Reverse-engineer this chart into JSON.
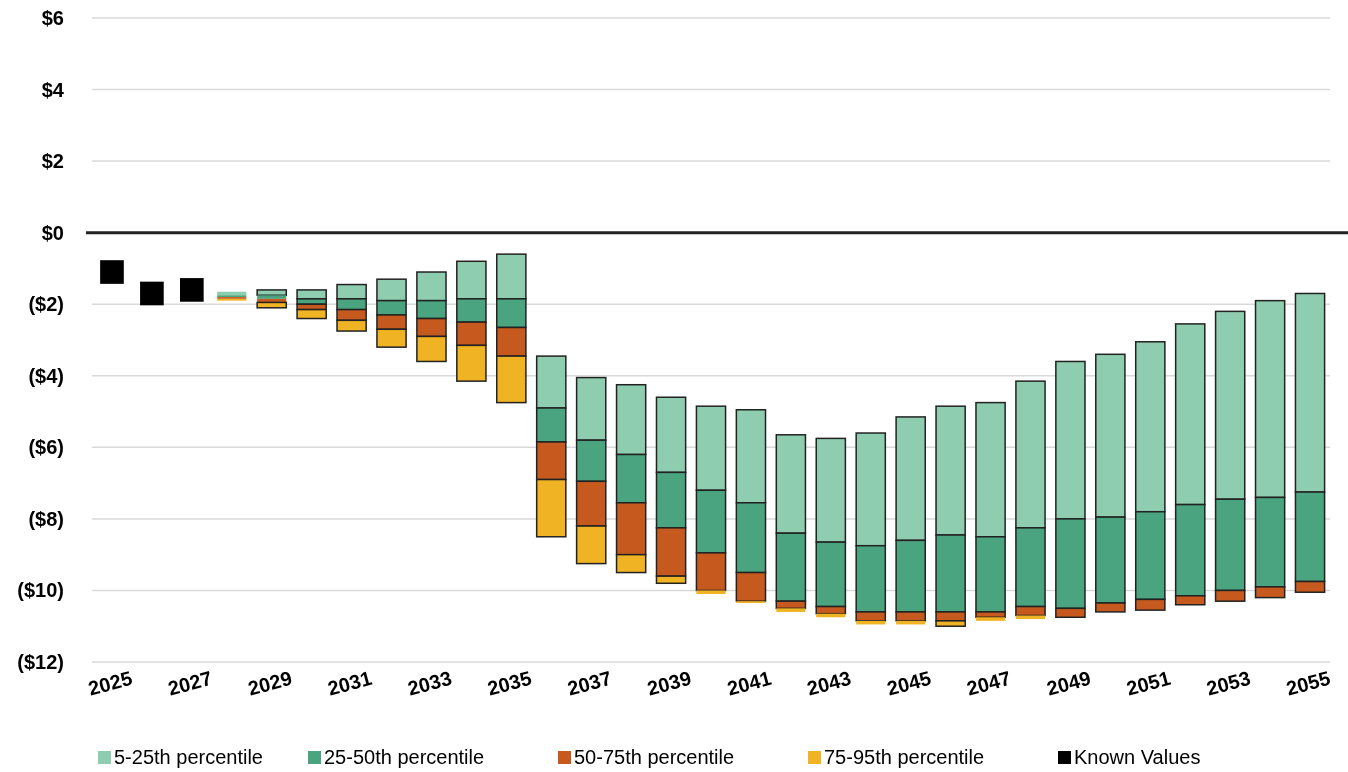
{
  "chart_data": {
    "type": "bar",
    "categories": [
      "2025",
      null,
      "2027",
      null,
      "2029",
      null,
      "2031",
      null,
      "2033",
      null,
      "2035",
      null,
      "2037",
      null,
      "2039",
      null,
      "2041",
      null,
      "2043",
      null,
      "2045",
      null,
      "2047",
      null,
      "2049",
      null,
      "2051",
      null,
      "2053",
      null,
      "2055"
    ],
    "series": [
      {
        "name": "5-25th percentile",
        "color": "#8ecdb0",
        "base": [
          null,
          null,
          null,
          -1.65,
          -1.6,
          -1.6,
          -1.45,
          -1.3,
          -1.1,
          -0.8,
          -0.6,
          -3.45,
          -4.05,
          -4.25,
          -4.6,
          -4.85,
          -4.95,
          -5.65,
          -5.75,
          -5.6,
          -5.15,
          -4.85,
          -4.75,
          -4.15,
          -3.6,
          -3.4,
          -3.05,
          -2.55,
          -2.2,
          -1.9,
          -1.7
        ],
        "values": [
          null,
          null,
          null,
          -0.1,
          -0.15,
          -0.25,
          -0.4,
          -0.6,
          -0.8,
          -1.05,
          -1.25,
          -1.45,
          -1.75,
          -1.95,
          -2.1,
          -2.35,
          -2.6,
          -2.75,
          -2.9,
          -3.15,
          -3.45,
          -3.6,
          -3.75,
          -4.1,
          -4.4,
          -4.55,
          -4.75,
          -5.05,
          -5.25,
          -5.5,
          -5.55
        ]
      },
      {
        "name": "25-50th percentile",
        "color": "#4aa47f",
        "base": [
          null,
          null,
          null,
          -1.75,
          -1.75,
          -1.85,
          -1.85,
          -1.9,
          -1.9,
          -1.85,
          -1.85,
          -4.9,
          -5.8,
          -6.2,
          -6.7,
          -7.2,
          -7.55,
          -8.4,
          -8.65,
          -8.75,
          -8.6,
          -8.45,
          -8.5,
          -8.25,
          -8.0,
          -7.95,
          -7.8,
          -7.6,
          -7.45,
          -7.4,
          -7.25
        ],
        "values": [
          null,
          null,
          null,
          -0.05,
          -0.1,
          -0.15,
          -0.3,
          -0.4,
          -0.5,
          -0.65,
          -0.8,
          -0.95,
          -1.15,
          -1.35,
          -1.55,
          -1.75,
          -1.95,
          -1.9,
          -1.8,
          -1.85,
          -2.0,
          -2.15,
          -2.1,
          -2.2,
          -2.5,
          -2.4,
          -2.45,
          -2.55,
          -2.55,
          -2.5,
          -2.5
        ]
      },
      {
        "name": "50-75th percentile",
        "color": "#c65a1e",
        "base": [
          null,
          null,
          null,
          -1.8,
          -1.85,
          -2.0,
          -2.15,
          -2.3,
          -2.4,
          -2.5,
          -2.65,
          -5.85,
          -6.95,
          -7.55,
          -8.25,
          -8.95,
          -9.5,
          -10.3,
          -10.45,
          -10.6,
          -10.6,
          -10.6,
          -10.6,
          -10.45,
          -10.5,
          -10.35,
          -10.25,
          -10.15,
          -10.0,
          -9.9,
          -9.75
        ],
        "values": [
          null,
          null,
          null,
          -0.05,
          -0.1,
          -0.15,
          -0.3,
          -0.4,
          -0.5,
          -0.65,
          -0.8,
          -1.05,
          -1.25,
          -1.45,
          -1.35,
          -1.05,
          -0.8,
          -0.2,
          -0.2,
          -0.25,
          -0.25,
          -0.25,
          -0.15,
          -0.25,
          -0.25,
          -0.25,
          -0.3,
          -0.25,
          -0.3,
          -0.3,
          -0.3
        ]
      },
      {
        "name": "75-95th percentile",
        "color": "#f0b323",
        "base": [
          null,
          null,
          null,
          -1.85,
          -1.95,
          -2.15,
          -2.45,
          -2.7,
          -2.9,
          -3.15,
          -3.45,
          -6.9,
          -8.2,
          -9.0,
          -9.6,
          -10.0,
          -10.3,
          -10.5,
          -10.65,
          -10.85,
          -10.85,
          -10.85,
          -10.75,
          -10.7,
          null,
          null,
          null,
          null,
          null,
          null,
          null
        ],
        "values": [
          null,
          null,
          null,
          -0.05,
          -0.15,
          -0.25,
          -0.3,
          -0.5,
          -0.7,
          -1.0,
          -1.3,
          -1.6,
          -1.05,
          -0.5,
          -0.2,
          -0.1,
          -0.05,
          -0.1,
          -0.1,
          -0.1,
          -0.1,
          -0.15,
          -0.1,
          -0.1,
          null,
          null,
          null,
          null,
          null,
          null,
          null
        ]
      },
      {
        "name": "Known Values",
        "type": "scatter",
        "color": "#000000",
        "values": [
          -1.1,
          -1.7,
          -1.6,
          null,
          null,
          null,
          null,
          null,
          null,
          null,
          null,
          null,
          null,
          null,
          null,
          null,
          null,
          null,
          null,
          null,
          null,
          null,
          null,
          null,
          null,
          null,
          null,
          null,
          null,
          null,
          null
        ]
      }
    ],
    "marker": "square",
    "ylim": [
      -12,
      6
    ],
    "yticks": [
      {
        "value": -12,
        "label": "($12)"
      },
      {
        "value": -10,
        "label": "($10)"
      },
      {
        "value": -8,
        "label": "($8)"
      },
      {
        "value": -6,
        "label": "($6)"
      },
      {
        "value": -4,
        "label": "($4)"
      },
      {
        "value": -2,
        "label": "($2)"
      },
      {
        "value": 0,
        "label": "$0"
      },
      {
        "value": 2,
        "label": "$2"
      },
      {
        "value": 4,
        "label": "$4"
      },
      {
        "value": 6,
        "label": "$6"
      }
    ],
    "grid": "y",
    "legend": "bottom"
  }
}
